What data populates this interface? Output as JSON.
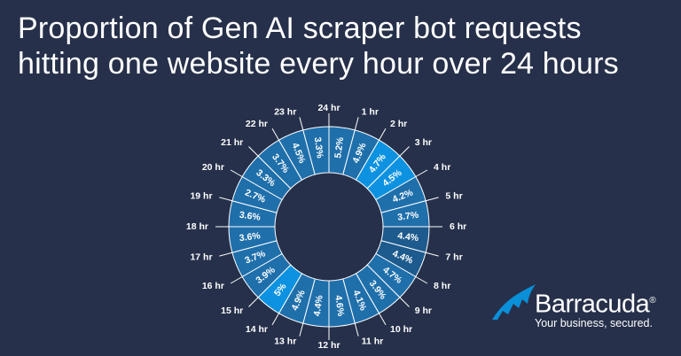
{
  "title": {
    "line1": "Proportion of Gen AI scraper bot requests",
    "line2": "hitting one website every hour over 24 hours"
  },
  "brand": {
    "name": "Barracuda",
    "registered_mark": "®",
    "tagline": "Your business, secured.",
    "logo_icon": "barracuda-fin-icon",
    "color": "#0a8fd9"
  },
  "colors": {
    "background": "#26304a",
    "ring_dark": "#1d5a8d",
    "ring_mid": "#1f6fab",
    "ring_bright": "#0c92e0",
    "separator": "#ffffff"
  },
  "chart_data": {
    "type": "pie",
    "subtype": "donut",
    "categories": [
      "1 hr",
      "2 hr",
      "3 hr",
      "4 hr",
      "5 hr",
      "6 hr",
      "7 hr",
      "8 hr",
      "9 hr",
      "10 hr",
      "11 hr",
      "12 hr",
      "13 hr",
      "14 hr",
      "15 hr",
      "16 hr",
      "17 hr",
      "18 hr",
      "19 hr",
      "20 hr",
      "21 hr",
      "22 hr",
      "23 hr",
      "24 hr"
    ],
    "values": [
      5.2,
      4.9,
      4.7,
      4.5,
      4.2,
      3.7,
      4.4,
      4.4,
      4.7,
      3.9,
      4.1,
      4.6,
      4.4,
      4.9,
      5,
      3.9,
      3.7,
      3.6,
      3.6,
      2.7,
      3.3,
      3.7,
      4.5,
      3.3
    ],
    "value_labels": [
      "5.2%",
      "4.9%",
      "4.7%",
      "4.5%",
      "4.2%",
      "3.7%",
      "4.4%",
      "4.4%",
      "4.7%",
      "3.9%",
      "4.1%",
      "4.6%",
      "4.4%",
      "4.9%",
      "5%",
      "3.9%",
      "3.7%",
      "3.6%",
      "3.6%",
      "2.7%",
      "3.3%",
      "3.7%",
      "4.5%",
      "3.3%"
    ],
    "unit": "%",
    "segment_shade": [
      "mid",
      "mid",
      "bright",
      "bright",
      "mid",
      "mid",
      "dark",
      "dark",
      "mid",
      "mid",
      "mid",
      "mid",
      "mid",
      "mid",
      "bright",
      "mid",
      "mid",
      "mid",
      "mid",
      "mid",
      "mid",
      "mid",
      "mid",
      "mid"
    ],
    "legend": "none"
  }
}
